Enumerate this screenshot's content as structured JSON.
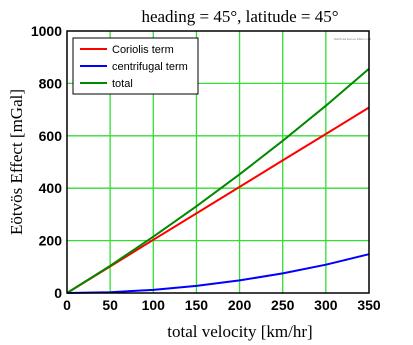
{
  "chart_data": {
    "type": "line",
    "title": "heading = 45°, latitude = 45°",
    "xlabel": "total velocity [km/hr]",
    "ylabel": "Eötvös Effect [mGal]",
    "xlim": [
      0,
      350
    ],
    "ylim": [
      0,
      1000
    ],
    "xticks": [
      0,
      50,
      100,
      150,
      200,
      250,
      300,
      350
    ],
    "yticks": [
      0,
      200,
      400,
      600,
      800,
      1000
    ],
    "grid": true,
    "grid_color": "#33dd33",
    "legend_position": "top-left",
    "watermark": "MathCad Eotvos Effect.mcd",
    "x": [
      0,
      50,
      100,
      150,
      200,
      250,
      300,
      350
    ],
    "series": [
      {
        "name": "Coriolis term",
        "color": "#ff0000",
        "values": [
          0,
          101,
          203,
          304,
          405,
          506,
          607,
          708
        ]
      },
      {
        "name": "centrifugal term",
        "color": "#0000ff",
        "values": [
          0,
          3,
          12,
          27,
          48,
          75,
          108,
          148
        ]
      },
      {
        "name": "total",
        "color": "#008800",
        "values": [
          0,
          104,
          215,
          331,
          453,
          581,
          715,
          856
        ]
      }
    ]
  }
}
